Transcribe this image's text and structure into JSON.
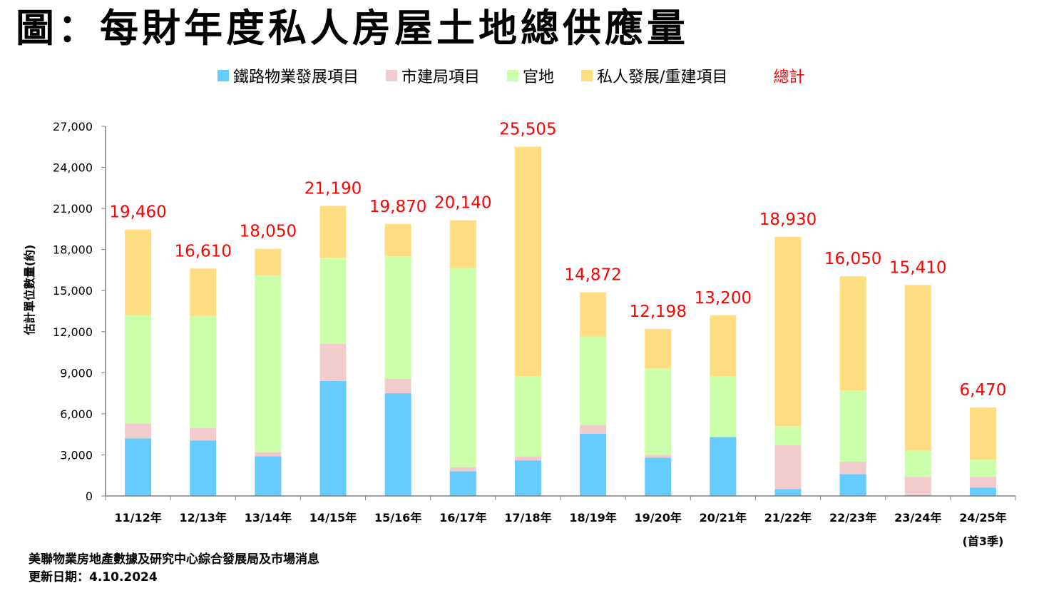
{
  "title": "圖：每財年度私人房屋土地總供應量",
  "legend": {
    "railway": "鐵路物業發展項目",
    "ura": "市建局項目",
    "government": "官地",
    "private": "私人發展/重建項目",
    "total": "總計"
  },
  "colors": {
    "railway": "#66ccff",
    "ura": "#f2cccc",
    "government": "#ccffaa",
    "private": "#ffdd80",
    "total_label": "#ff0000",
    "axis": "#808080"
  },
  "chart_data": {
    "type": "bar",
    "stacked": true,
    "ylabel": "估計單位數量(約)",
    "ylim": [
      0,
      27000
    ],
    "yticks": [
      0,
      3000,
      6000,
      9000,
      12000,
      15000,
      18000,
      21000,
      24000,
      27000
    ],
    "ytick_labels": [
      "0",
      "3,000",
      "6,000",
      "9,000",
      "12,000",
      "15,000",
      "18,000",
      "21,000",
      "24,000",
      "27,000"
    ],
    "categories": [
      "11/12年",
      "12/13年",
      "13/14年",
      "14/15年",
      "15/16年",
      "16/17年",
      "17/18年",
      "18/19年",
      "19/20年",
      "20/21年",
      "21/22年",
      "22/23年",
      "23/24年",
      "24/25年"
    ],
    "category_notes": [
      "",
      "",
      "",
      "",
      "",
      "",
      "",
      "",
      "",
      "",
      "",
      "",
      "",
      "(首3季)"
    ],
    "series": [
      {
        "key": "railway",
        "name": "鐵路物業發展項目",
        "values": [
          4200,
          4050,
          2900,
          8400,
          7500,
          1800,
          2600,
          4550,
          2800,
          4300,
          500,
          1600,
          0,
          600
        ]
      },
      {
        "key": "ura",
        "name": "市建局項目",
        "values": [
          1100,
          900,
          300,
          2700,
          1050,
          300,
          300,
          650,
          200,
          0,
          3200,
          900,
          1400,
          800
        ]
      },
      {
        "key": "government",
        "name": "官地",
        "values": [
          7900,
          8200,
          12900,
          6300,
          8950,
          14550,
          5850,
          6450,
          6300,
          4450,
          1400,
          5200,
          1900,
          1250
        ]
      },
      {
        "key": "private",
        "name": "私人發展/重建項目",
        "values": [
          6260,
          3460,
          1950,
          3790,
          2370,
          3490,
          16755,
          3222,
          2898,
          4450,
          13830,
          8350,
          12110,
          3820
        ]
      }
    ],
    "totals": [
      19460,
      16610,
      18050,
      21190,
      19870,
      20140,
      25505,
      14872,
      12198,
      13200,
      18930,
      16050,
      15410,
      6470
    ],
    "total_labels": [
      "19,460",
      "16,610",
      "18,050",
      "21,190",
      "19,870",
      "20,140",
      "25,505",
      "14,872",
      "12,198",
      "13,200",
      "18,930",
      "16,050",
      "15,410",
      "6,470"
    ],
    "grid": false,
    "legend_position": "top"
  },
  "footer": {
    "source": "美聯物業房地產數據及研究中心綜合發展局及市場消息",
    "updated": "更新日期：4.10.2024"
  }
}
